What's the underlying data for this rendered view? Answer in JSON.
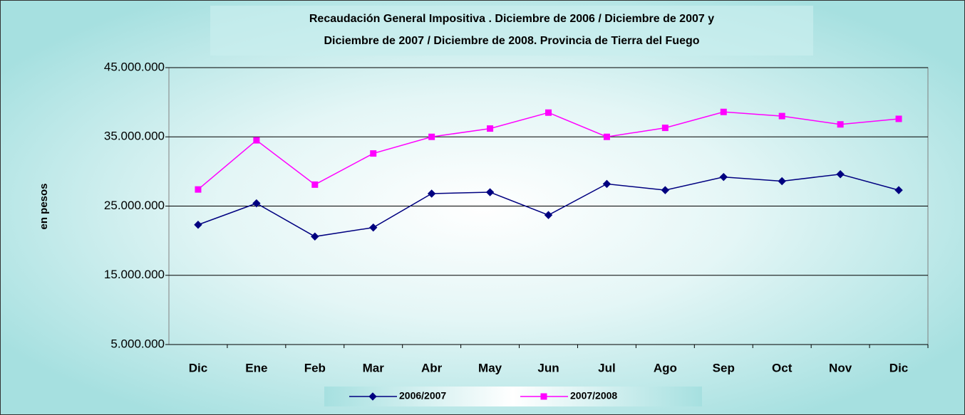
{
  "chart_data": {
    "type": "line",
    "title": [
      "Recaudación General Impositiva . Diciembre de 2006 / Diciembre de 2007 y",
      "Diciembre de 2007 / Diciembre de 2008. Provincia de Tierra del Fuego"
    ],
    "y_label": "en pesos",
    "categories": [
      "Dic",
      "Ene",
      "Feb",
      "Mar",
      "Abr",
      "May",
      "Jun",
      "Jul",
      "Ago",
      "Sep",
      "Oct",
      "Nov",
      "Dic"
    ],
    "series": [
      {
        "name": "2006/2007",
        "color": "#000080",
        "marker": "diamond",
        "values": [
          22300000,
          25400000,
          20600000,
          21900000,
          26800000,
          27000000,
          23700000,
          28200000,
          27300000,
          29200000,
          28600000,
          29600000,
          27300000
        ]
      },
      {
        "name": "2007/2008",
        "color": "#ff00ff",
        "marker": "square",
        "values": [
          27400000,
          34500000,
          28100000,
          32600000,
          35000000,
          36200000,
          38500000,
          35000000,
          36300000,
          38600000,
          38000000,
          36800000,
          37600000
        ]
      }
    ],
    "ylim": [
      5000000,
      45000000
    ],
    "yticks": [
      {
        "value": 5000000,
        "label": "5.000.000"
      },
      {
        "value": 15000000,
        "label": "15.000.000"
      },
      {
        "value": 25000000,
        "label": "25.000.000"
      },
      {
        "value": 35000000,
        "label": "35.000.000"
      },
      {
        "value": 45000000,
        "label": "45.000.000"
      }
    ],
    "grid": true,
    "legend": "bottom"
  }
}
